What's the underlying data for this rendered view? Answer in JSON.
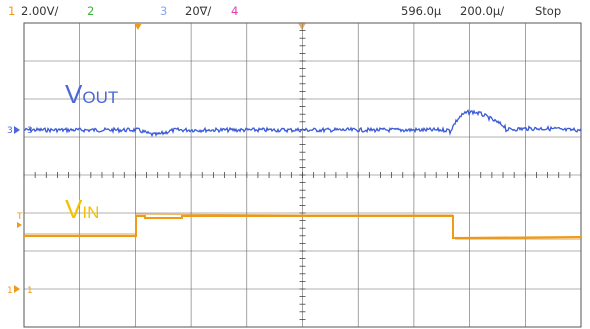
{
  "header": {
    "ch1_num": "1",
    "ch1_scale": "2.00V/",
    "ch2_num": "2",
    "ch3_num": "3",
    "ch3_scale": "20∇/",
    "ch4_num": "4",
    "time_offset": "596.0µ",
    "time_scale": "200.0µ/",
    "run_state": "Stop"
  },
  "labels": {
    "vout_main": "V",
    "vout_sub": "OUT",
    "vin_main": "V",
    "vin_sub": "IN",
    "ch3_marker": "3",
    "ch1_marker": "1",
    "trigger_marker": "T"
  },
  "colors": {
    "ch1": "#ef9b16",
    "ch2": "#3cb53c",
    "ch3": "#4c68d8",
    "ch3_label": "#8aa6e8",
    "ch4": "#e040b0",
    "grid": "#555555"
  },
  "waveforms": {
    "ch3_vout": "trace with dip at input step-up and overshoot/ringing at input step-down",
    "ch1_vin": "step high then step low"
  }
}
